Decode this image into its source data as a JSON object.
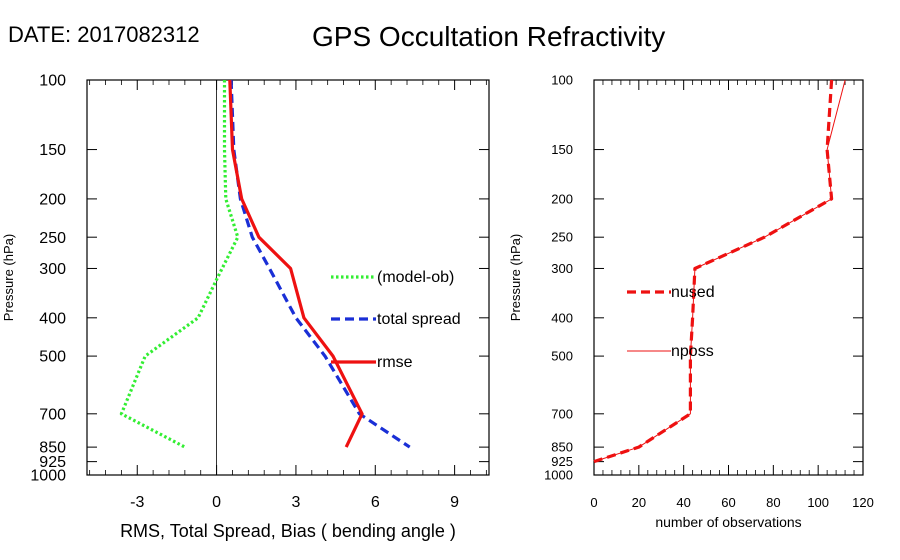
{
  "header": {
    "date_label": "DATE: 2017082312",
    "title": "GPS Occultation Refractivity"
  },
  "chart_data": [
    {
      "type": "line",
      "panel": "left",
      "xlabel": "RMS, Total Spread, Bias ( bending angle )",
      "ylabel": "Pressure (hPa)",
      "xlim": [
        -4.9,
        10.3
      ],
      "ylim": [
        1000,
        100
      ],
      "y_scale": "log",
      "x_ticks": [
        -3,
        0,
        3,
        6,
        9
      ],
      "y_ticks": [
        100,
        150,
        200,
        250,
        300,
        400,
        500,
        700,
        850,
        925,
        1000
      ],
      "grid": false,
      "zero_line": 0,
      "legend_position": "right",
      "series": [
        {
          "name": "(model-ob)",
          "color": "#33ee33",
          "style": "dotted",
          "points": [
            [
              0.3,
              100
            ],
            [
              0.3,
              150
            ],
            [
              0.35,
              200
            ],
            [
              0.8,
              250
            ],
            [
              0.0,
              320
            ],
            [
              -0.7,
              400
            ],
            [
              -2.7,
              500
            ],
            [
              -3.6,
              700
            ],
            [
              -1.2,
              850
            ]
          ]
        },
        {
          "name": "total spread",
          "color": "#1a2fd6",
          "style": "dashed",
          "points": [
            [
              0.55,
              100
            ],
            [
              0.65,
              150
            ],
            [
              0.9,
              200
            ],
            [
              1.35,
              250
            ],
            [
              2.0,
              300
            ],
            [
              3.0,
              400
            ],
            [
              4.1,
              500
            ],
            [
              5.4,
              700
            ],
            [
              7.3,
              850
            ]
          ]
        },
        {
          "name": "rmse",
          "color": "#ee1111",
          "style": "solid",
          "points": [
            [
              0.5,
              100
            ],
            [
              0.6,
              150
            ],
            [
              0.95,
              200
            ],
            [
              1.6,
              250
            ],
            [
              2.8,
              300
            ],
            [
              3.3,
              400
            ],
            [
              4.4,
              500
            ],
            [
              5.5,
              700
            ],
            [
              4.9,
              850
            ]
          ]
        }
      ]
    },
    {
      "type": "line",
      "panel": "right",
      "xlabel": "number of observations",
      "ylabel": "Pressure (hPa)",
      "xlim": [
        0,
        120
      ],
      "ylim": [
        1000,
        100
      ],
      "y_scale": "log",
      "x_ticks": [
        0,
        20,
        40,
        60,
        80,
        100,
        120
      ],
      "y_ticks": [
        100,
        150,
        200,
        250,
        300,
        400,
        500,
        700,
        850,
        925,
        1000
      ],
      "grid": false,
      "legend_position": "left",
      "series": [
        {
          "name": "nused",
          "color": "#ee1111",
          "style": "dashed",
          "points": [
            [
              106,
              100
            ],
            [
              104,
              150
            ],
            [
              106,
              200
            ],
            [
              76,
              250
            ],
            [
              45,
              300
            ],
            [
              44,
              400
            ],
            [
              43,
              500
            ],
            [
              43,
              700
            ],
            [
              20,
              850
            ],
            [
              0,
              925
            ]
          ]
        },
        {
          "name": "nposs",
          "color": "#ee1111",
          "style": "thin",
          "points": [
            [
              112,
              100
            ],
            [
              104,
              150
            ],
            [
              106,
              200
            ],
            [
              76,
              250
            ],
            [
              45,
              300
            ],
            [
              44,
              400
            ],
            [
              43,
              500
            ],
            [
              43,
              700
            ],
            [
              20,
              850
            ],
            [
              0,
              925
            ]
          ]
        }
      ]
    }
  ]
}
